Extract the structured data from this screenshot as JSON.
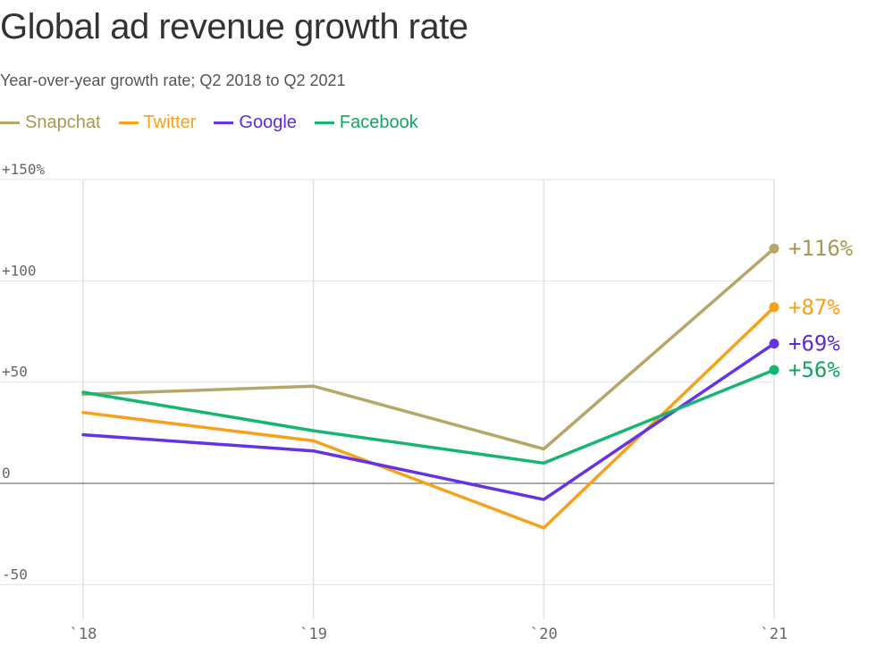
{
  "title": "Global ad revenue growth rate",
  "subtitle": "Year-over-year growth rate; Q2 2018 to Q2 2021",
  "chart_data": {
    "type": "line",
    "title": "Global ad revenue growth rate",
    "subtitle": "Year-over-year growth rate; Q2 2018 to Q2 2021",
    "xlabel": "",
    "ylabel": "",
    "x": [
      "`18",
      "`19",
      "`20",
      "`21"
    ],
    "ylim": [
      -60,
      150
    ],
    "yticks": [
      -50,
      0,
      50,
      100,
      150
    ],
    "ytick_labels": [
      "-50",
      "0",
      "+50",
      "+100",
      "+150%"
    ],
    "grid": true,
    "legend": "top-left",
    "series": [
      {
        "name": "Snapchat",
        "color": "#b5a76a",
        "label_color": "#a89850",
        "values": [
          44,
          48,
          17,
          116
        ],
        "end_label": "+116%"
      },
      {
        "name": "Twitter",
        "color": "#f7a11a",
        "label_color": "#f7a11a",
        "values": [
          35,
          21,
          -22,
          87
        ],
        "end_label": "+87%"
      },
      {
        "name": "Google",
        "color": "#6533e6",
        "label_color": "#5a2bd9",
        "values": [
          24,
          16,
          -8,
          69
        ],
        "end_label": "+69%"
      },
      {
        "name": "Facebook",
        "color": "#16b672",
        "label_color": "#13a463",
        "values": [
          45,
          26,
          10,
          56
        ],
        "end_label": "+56%"
      }
    ]
  }
}
